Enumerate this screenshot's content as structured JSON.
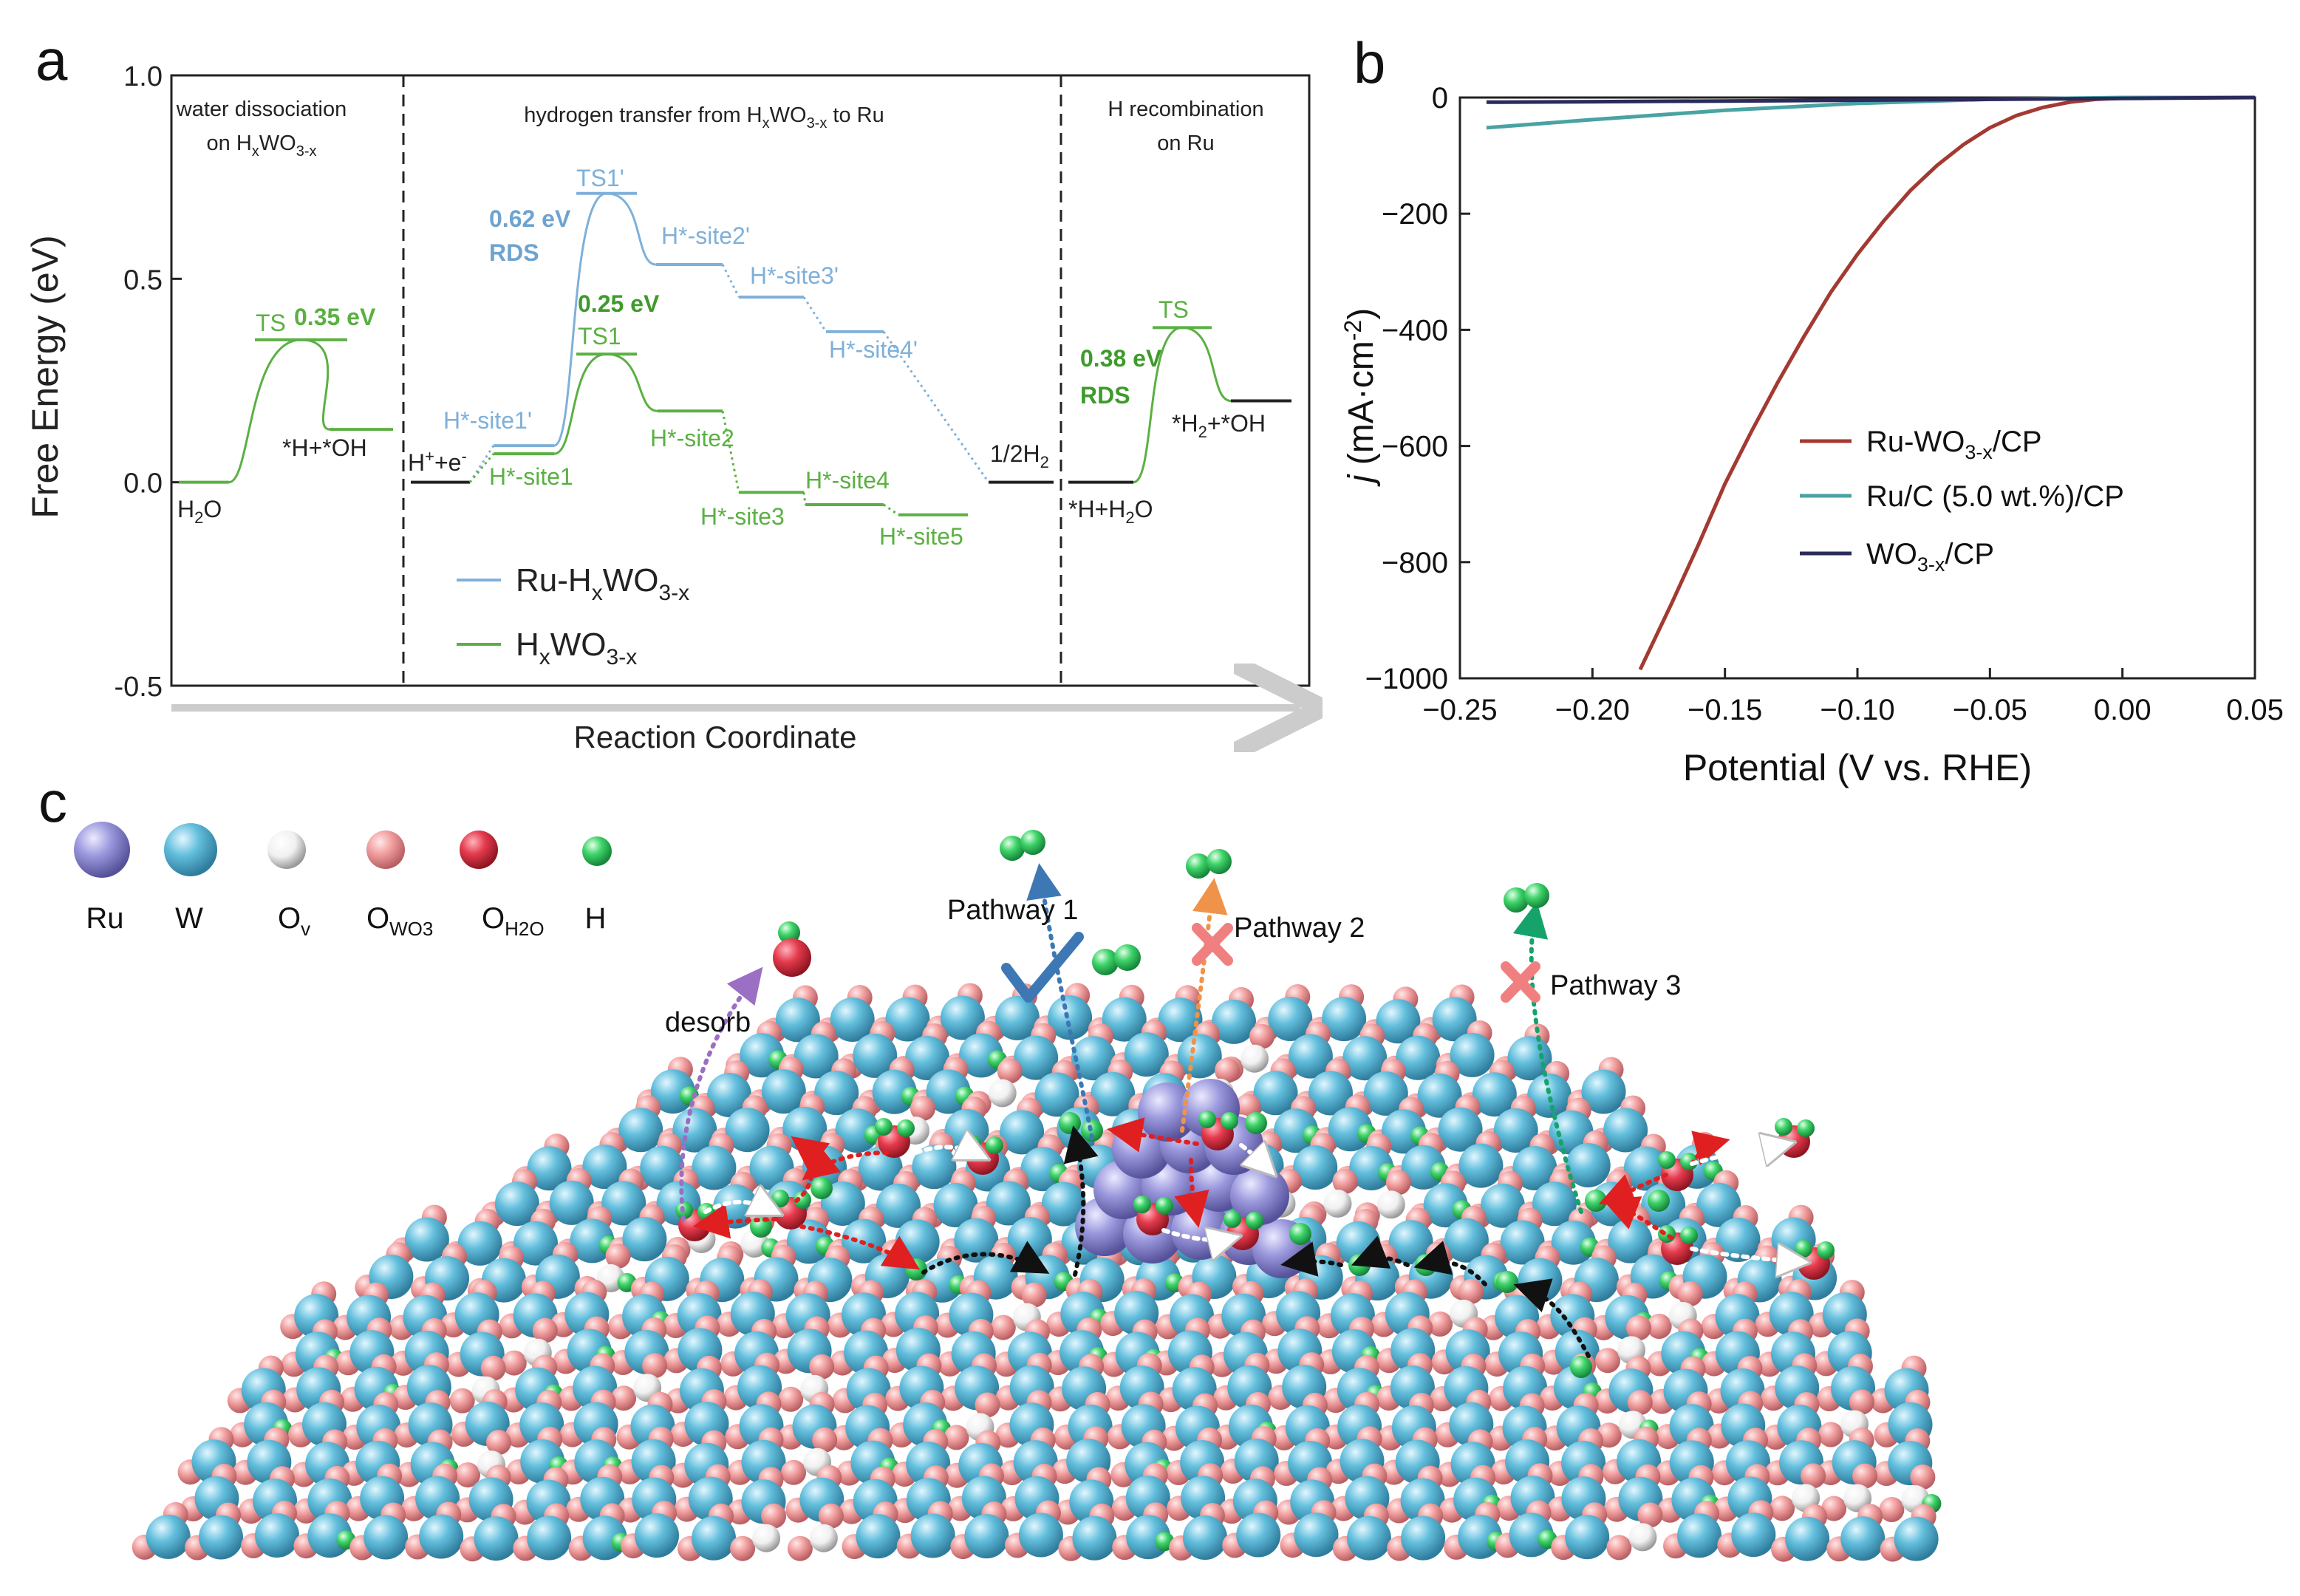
{
  "panel_letters": {
    "a": "a",
    "b": "b",
    "c": "c"
  },
  "colors": {
    "green": "#5bb043",
    "blue": "#7fb0d8",
    "red": "#a33a32",
    "teal": "#4aa3a3",
    "navy": "#2a2a5c",
    "arrow_gray": "#cccccc",
    "ru": "#9b98dd",
    "w": "#62bedc",
    "ov": "#f2f2f2",
    "owo3": "#f2a0a0",
    "oh2o": "#e53b4d",
    "h": "#3fd46a"
  },
  "chart_data": [
    {
      "type": "line",
      "panel": "a",
      "title": "",
      "xlabel": "Reaction Coordinate",
      "ylabel": "Free Energy (eV)",
      "ylim": [
        -0.5,
        1.0
      ],
      "yticks": [
        "1.0",
        "0.5",
        "0.0",
        "-0.5"
      ],
      "ytick_values": [
        1.0,
        0.5,
        0.0,
        -0.5
      ],
      "section_titles": [
        {
          "line1": "water dissociation",
          "line2_pre": "on H",
          "line2_sub": "x",
          "line2_mid": "WO",
          "line2_sub2": "3-x"
        },
        {
          "line1_pre": "hydrogen transfer from H",
          "line1_sub": "x",
          "line1_mid": "WO",
          "line1_sub2": "3-x",
          "line1_post": " to Ru"
        },
        {
          "line1": "H recombination",
          "line2": "on Ru"
        }
      ],
      "legend": [
        {
          "name_pre": "Ru-H",
          "sub1": "x",
          "mid": "WO",
          "sub2": "3-x",
          "color_key": "blue"
        },
        {
          "name_pre": "H",
          "sub1": "x",
          "mid": "WO",
          "sub2": "3-x",
          "color_key": "green"
        }
      ],
      "series": [
        {
          "name": "H_xWO_3-x water dissociation",
          "segment": 1,
          "levels": [
            {
              "label": "H2O",
              "value": 0.0
            },
            {
              "label": "TS",
              "value": 0.35
            },
            {
              "label": "*H+*OH",
              "value": 0.13
            }
          ]
        },
        {
          "name": "Ru-H_xWO_3-x",
          "segment": 2,
          "levels": [
            {
              "label": "H+ + e-",
              "value": 0.0
            },
            {
              "label": "H*-site1'",
              "value": 0.09
            },
            {
              "label": "TS1'",
              "value": 0.71
            },
            {
              "label": "H*-site2'",
              "value": 0.535
            },
            {
              "label": "H*-site3'",
              "value": 0.455
            },
            {
              "label": "H*-site4'",
              "value": 0.37
            },
            {
              "label": "1/2H2",
              "value": 0.0
            }
          ]
        },
        {
          "name": "H_xWO_3-x",
          "segment": 2,
          "levels": [
            {
              "label": "H*-site1",
              "value": 0.07
            },
            {
              "label": "TS1",
              "value": 0.315
            },
            {
              "label": "H*-site2",
              "value": 0.175
            },
            {
              "label": "H*-site3",
              "value": -0.025
            },
            {
              "label": "H*-site4",
              "value": -0.055
            },
            {
              "label": "H*-site5",
              "value": -0.08
            }
          ]
        },
        {
          "name": "H recombination on Ru",
          "segment": 3,
          "levels": [
            {
              "label": "*H+H2O",
              "value": 0.0
            },
            {
              "label": "TS",
              "value": 0.38
            },
            {
              "label": "*H2+*OH",
              "value": 0.2
            }
          ]
        }
      ],
      "annotations": {
        "ts_left": "TS",
        "ts_left_energy": "0.35 eV",
        "h2o": {
          "pre": "H",
          "sub": "2",
          "post": "O"
        },
        "hoh": "*H+*OH",
        "hplus": {
          "pre": "H",
          "sup": "+",
          "post": "+e",
          "sup2": "-"
        },
        "ts1p": "TS1'",
        "ts1": "TS1",
        "e062": "0.62 eV",
        "rds": "RDS",
        "e025": "0.25 eV",
        "site1p": "H*-site1'",
        "site2p": "H*-site2'",
        "site3p": "H*-site3'",
        "site4p": "H*-site4'",
        "site1": "H*-site1",
        "site2": "H*-site2",
        "site3": "H*-site3",
        "site4": "H*-site4",
        "site5": "H*-site5",
        "halfh2": {
          "pre": "1/2H",
          "sub": "2"
        },
        "ts_right": "TS",
        "e038": "0.38 eV",
        "rds_right": "RDS",
        "h2oh": {
          "pre": "*H",
          "sub": "2",
          "post": "+*OH"
        },
        "hh2o": {
          "pre": "*H+H",
          "sub": "2",
          "post": "O"
        }
      }
    },
    {
      "type": "line",
      "panel": "b",
      "xlabel": "Potential (V vs. RHE)",
      "ylabel_pre": "j",
      "ylabel_post": " (mA·cm",
      "ylabel_sup": "-2",
      "ylabel_end": ")",
      "xlim": [
        -0.25,
        0.05
      ],
      "ylim": [
        -1000,
        0
      ],
      "xticks": [
        -0.25,
        -0.2,
        -0.15,
        -0.1,
        -0.05,
        0.0,
        0.05
      ],
      "xtick_labels": [
        "−0.25",
        "−0.20",
        "−0.15",
        "−0.10",
        "−0.05",
        "0.00",
        "0.05"
      ],
      "yticks": [
        0,
        -200,
        -400,
        -600,
        -800,
        -1000
      ],
      "ytick_labels": [
        "0",
        "−200",
        "−400",
        "−600",
        "−800",
        "−1000"
      ],
      "legend": [
        {
          "pre": "Ru-WO",
          "sub": "3-x",
          "post": "/CP",
          "color_key": "red"
        },
        {
          "pre": "Ru/C (5.0 wt.%)/CP",
          "sub": "",
          "post": "",
          "color_key": "teal"
        },
        {
          "pre": "WO",
          "sub": "3-x",
          "post": "/CP",
          "color_key": "navy"
        }
      ],
      "series": [
        {
          "name": "Ru-WO3-x/CP",
          "color_key": "red",
          "x": [
            -0.182,
            -0.17,
            -0.16,
            -0.15,
            -0.14,
            -0.13,
            -0.12,
            -0.11,
            -0.1,
            -0.09,
            -0.08,
            -0.07,
            -0.06,
            -0.05,
            -0.04,
            -0.03,
            -0.02,
            -0.01,
            0.0,
            0.01,
            0.02,
            0.03,
            0.05
          ],
          "y": [
            -985,
            -870,
            -770,
            -665,
            -575,
            -490,
            -410,
            -335,
            -270,
            -212,
            -160,
            -117,
            -81,
            -52,
            -31,
            -17,
            -8,
            -3,
            -1,
            0,
            0,
            0,
            0
          ]
        },
        {
          "name": "Ru/C (5.0 wt.%)/CP",
          "color_key": "teal",
          "x": [
            -0.24,
            -0.2,
            -0.15,
            -0.1,
            -0.05,
            0.0,
            0.05
          ],
          "y": [
            -52,
            -38,
            -22,
            -10,
            -3,
            0,
            0
          ]
        },
        {
          "name": "WO3-x/CP",
          "color_key": "navy",
          "x": [
            -0.24,
            -0.15,
            -0.05,
            0.05
          ],
          "y": [
            -8,
            -6,
            -3,
            0
          ]
        }
      ]
    }
  ],
  "panel_c": {
    "legend": [
      {
        "key": "ru",
        "label_pre": "Ru",
        "label_sub": ""
      },
      {
        "key": "w",
        "label_pre": "W",
        "label_sub": ""
      },
      {
        "key": "ov",
        "label_pre": "O",
        "label_sub": "v"
      },
      {
        "key": "owo3",
        "label_pre": "O",
        "label_sub": "WO3"
      },
      {
        "key": "oh2o",
        "label_pre": "O",
        "label_sub": "H2O"
      },
      {
        "key": "h",
        "label_pre": "H",
        "label_sub": ""
      }
    ],
    "labels": {
      "pathway1": "Pathway 1",
      "pathway2": "Pathway 2",
      "pathway3": "Pathway 3",
      "desorb": "desorb"
    }
  }
}
